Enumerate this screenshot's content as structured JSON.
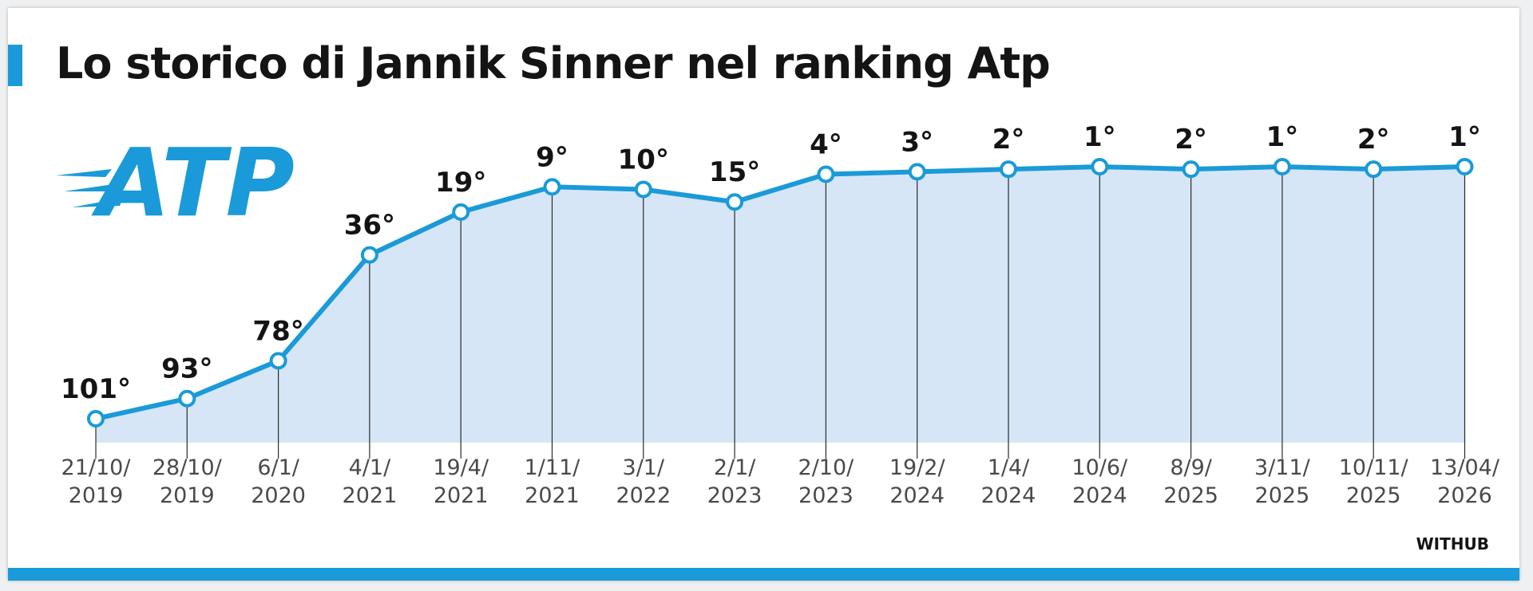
{
  "title": "Lo storico di Jannik Sinner nel ranking Atp",
  "logo_text": "ATP",
  "credit": "WITHUB",
  "colors": {
    "accent": "#1a9ad8",
    "line": "#1a9ad8",
    "area": "#d6e6f6",
    "text": "#141414",
    "tick_text": "#4a4a4a"
  },
  "chart_data": {
    "type": "line",
    "title": "Lo storico di Jannik Sinner nel ranking Atp",
    "xlabel": "",
    "ylabel": "",
    "categories": [
      [
        "21/10/",
        "2019"
      ],
      [
        "28/10/",
        "2019"
      ],
      [
        "6/1/",
        "2020"
      ],
      [
        "4/1/",
        "2021"
      ],
      [
        "19/4/",
        "2021"
      ],
      [
        "1/11/",
        "2021"
      ],
      [
        "3/1/",
        "2022"
      ],
      [
        "2/1/",
        "2023"
      ],
      [
        "2/10/",
        "2023"
      ],
      [
        "19/2/",
        "2024"
      ],
      [
        "1/4/",
        "2024"
      ],
      [
        "10/6/",
        "2024"
      ],
      [
        "8/9/",
        "2025"
      ],
      [
        "3/11/",
        "2025"
      ],
      [
        "10/11/",
        "2025"
      ],
      [
        "13/04/",
        "2026"
      ]
    ],
    "values": [
      101,
      93,
      78,
      36,
      19,
      9,
      10,
      15,
      4,
      3,
      2,
      1,
      2,
      1,
      2,
      1
    ],
    "labels": [
      "101°",
      "93°",
      "78°",
      "36°",
      "19°",
      "9°",
      "10°",
      "15°",
      "4°",
      "3°",
      "2°",
      "1°",
      "2°",
      "1°",
      "2°",
      "1°"
    ],
    "area_fill": true,
    "grid": false,
    "legend": "none"
  }
}
